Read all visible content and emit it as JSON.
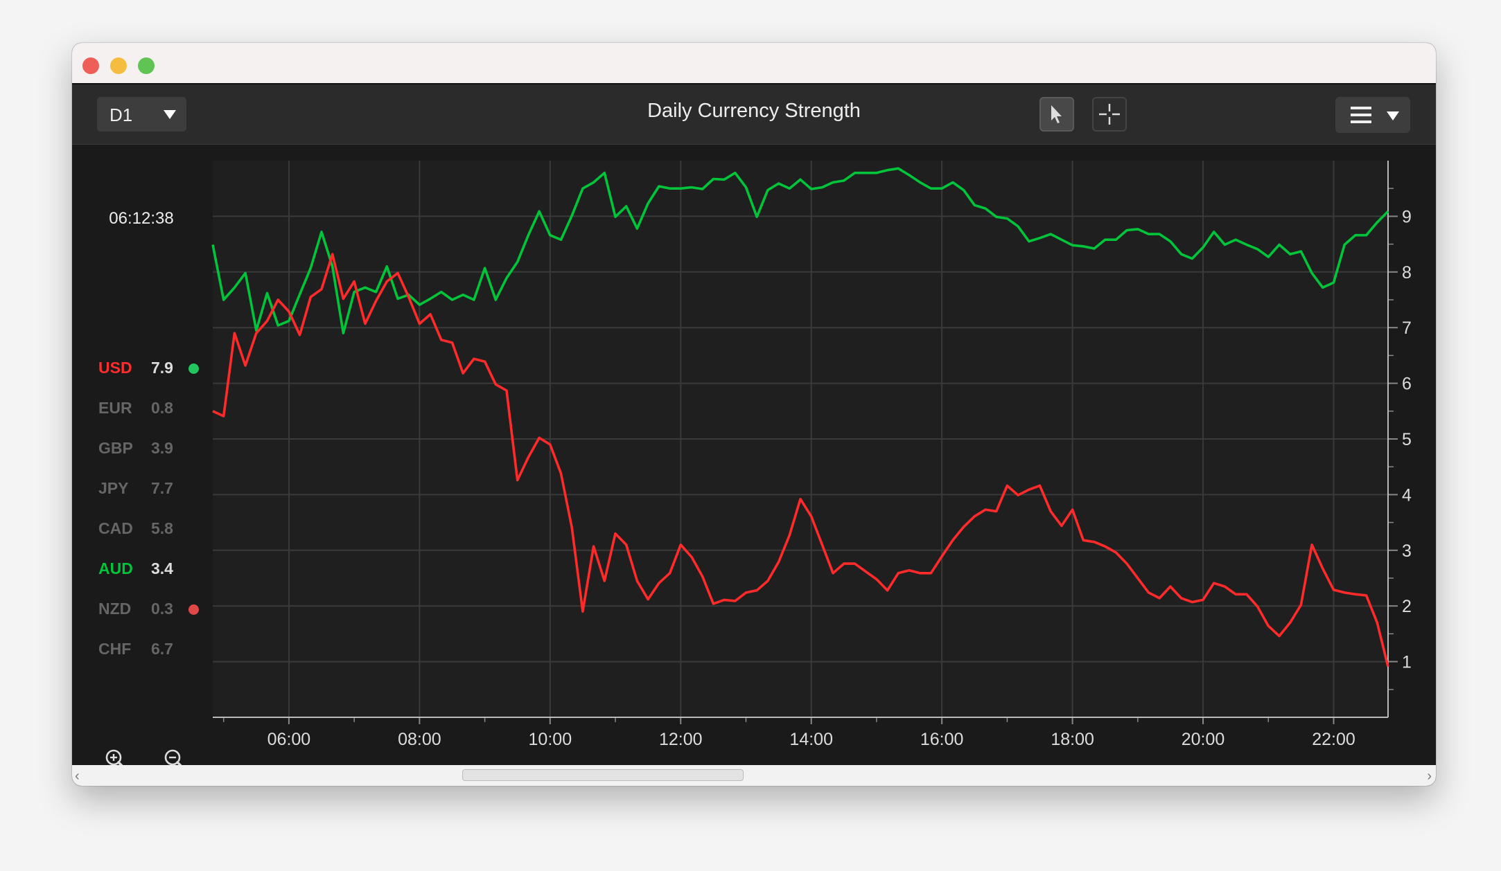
{
  "window": {
    "title": "Daily Currency Strength"
  },
  "toolbar": {
    "timeframe": "D1",
    "pointer_tool": "pointer-icon",
    "crosshair_tool": "crosshair-icon",
    "menu": "hamburger-menu-icon"
  },
  "sidebar": {
    "clock": "06:12:38",
    "currencies": [
      {
        "code": "USD",
        "value": "7.9",
        "code_color": "#ff2d2d",
        "value_color": "#dddddd",
        "dot": "#22c55e"
      },
      {
        "code": "EUR",
        "value": "0.8",
        "code_color": "#666666",
        "value_color": "#666666",
        "dot": null
      },
      {
        "code": "GBP",
        "value": "3.9",
        "code_color": "#666666",
        "value_color": "#666666",
        "dot": null
      },
      {
        "code": "JPY",
        "value": "7.7",
        "code_color": "#666666",
        "value_color": "#666666",
        "dot": null
      },
      {
        "code": "CAD",
        "value": "5.8",
        "code_color": "#666666",
        "value_color": "#666666",
        "dot": null
      },
      {
        "code": "AUD",
        "value": "3.4",
        "code_color": "#00c43a",
        "value_color": "#dddddd",
        "dot": null
      },
      {
        "code": "NZD",
        "value": "0.3",
        "code_color": "#666666",
        "value_color": "#666666",
        "dot": "#e04848"
      },
      {
        "code": "CHF",
        "value": "6.7",
        "code_color": "#666666",
        "value_color": "#666666",
        "dot": null
      }
    ]
  },
  "chart_data": {
    "type": "line",
    "title": "Daily Currency Strength",
    "x_unit": "hours",
    "x_start": 4.8333,
    "x_step_minutes": 10,
    "xlim": [
      4.8333,
      22.8333
    ],
    "ylim": [
      0,
      10
    ],
    "x_ticks": [
      {
        "v": 6,
        "label": "06:00"
      },
      {
        "v": 8,
        "label": "08:00"
      },
      {
        "v": 10,
        "label": "10:00"
      },
      {
        "v": 12,
        "label": "12:00"
      },
      {
        "v": 14,
        "label": "14:00"
      },
      {
        "v": 16,
        "label": "16:00"
      },
      {
        "v": 18,
        "label": "18:00"
      },
      {
        "v": 20,
        "label": "20:00"
      },
      {
        "v": 22,
        "label": "22:00"
      }
    ],
    "y_ticks": [
      {
        "v": 1,
        "label": "1"
      },
      {
        "v": 2,
        "label": "2"
      },
      {
        "v": 3,
        "label": "3"
      },
      {
        "v": 4,
        "label": "4"
      },
      {
        "v": 5,
        "label": "5"
      },
      {
        "v": 6,
        "label": "6"
      },
      {
        "v": 7,
        "label": "7"
      },
      {
        "v": 8,
        "label": "8"
      },
      {
        "v": 9,
        "label": "9"
      }
    ],
    "grid": true,
    "series": [
      {
        "name": "green",
        "color": "#00c43a",
        "values": [
          8.49,
          7.5,
          7.72,
          7.98,
          6.95,
          7.62,
          7.04,
          7.12,
          7.6,
          8.07,
          8.72,
          8.1,
          6.9,
          7.64,
          7.72,
          7.64,
          8.1,
          7.52,
          7.59,
          7.41,
          7.52,
          7.64,
          7.5,
          7.59,
          7.5,
          8.07,
          7.5,
          7.89,
          8.18,
          8.66,
          9.09,
          8.66,
          8.58,
          9.01,
          9.5,
          9.61,
          9.78,
          8.99,
          9.18,
          8.78,
          9.23,
          9.54,
          9.5,
          9.5,
          9.52,
          9.49,
          9.67,
          9.66,
          9.78,
          9.52,
          8.99,
          9.47,
          9.59,
          9.5,
          9.66,
          9.49,
          9.52,
          9.61,
          9.64,
          9.78,
          9.78,
          9.78,
          9.83,
          9.86,
          9.74,
          9.61,
          9.5,
          9.5,
          9.61,
          9.47,
          9.2,
          9.14,
          8.99,
          8.96,
          8.82,
          8.55,
          8.61,
          8.68,
          8.58,
          8.48,
          8.46,
          8.42,
          8.58,
          8.58,
          8.75,
          8.77,
          8.68,
          8.68,
          8.55,
          8.32,
          8.24,
          8.44,
          8.72,
          8.49,
          8.58,
          8.49,
          8.41,
          8.27,
          8.49,
          8.32,
          8.37,
          7.98,
          7.72,
          7.81,
          8.49,
          8.66,
          8.66,
          8.89,
          9.09
        ]
      },
      {
        "name": "red",
        "color": "#ff2a2a",
        "values": [
          5.5,
          5.41,
          6.9,
          6.32,
          6.9,
          7.12,
          7.5,
          7.29,
          6.87,
          7.55,
          7.69,
          8.32,
          7.52,
          7.83,
          7.07,
          7.48,
          7.83,
          7.98,
          7.55,
          7.07,
          7.24,
          6.78,
          6.73,
          6.18,
          6.44,
          6.39,
          5.98,
          5.87,
          4.26,
          4.67,
          5.02,
          4.9,
          4.38,
          3.41,
          1.9,
          3.07,
          2.45,
          3.3,
          3.1,
          2.45,
          2.12,
          2.41,
          2.59,
          3.1,
          2.88,
          2.53,
          2.04,
          2.11,
          2.09,
          2.24,
          2.28,
          2.45,
          2.79,
          3.27,
          3.92,
          3.61,
          3.1,
          2.59,
          2.76,
          2.76,
          2.62,
          2.48,
          2.28,
          2.59,
          2.64,
          2.59,
          2.59,
          2.89,
          3.18,
          3.42,
          3.61,
          3.73,
          3.7,
          4.16,
          3.99,
          4.09,
          4.16,
          3.7,
          3.44,
          3.73,
          3.18,
          3.15,
          3.07,
          2.96,
          2.76,
          2.5,
          2.24,
          2.14,
          2.35,
          2.14,
          2.07,
          2.11,
          2.41,
          2.35,
          2.21,
          2.21,
          1.99,
          1.64,
          1.46,
          1.7,
          2.02,
          3.1,
          2.67,
          2.29,
          2.24,
          2.21,
          2.19,
          1.7,
          0.91
        ]
      }
    ]
  }
}
